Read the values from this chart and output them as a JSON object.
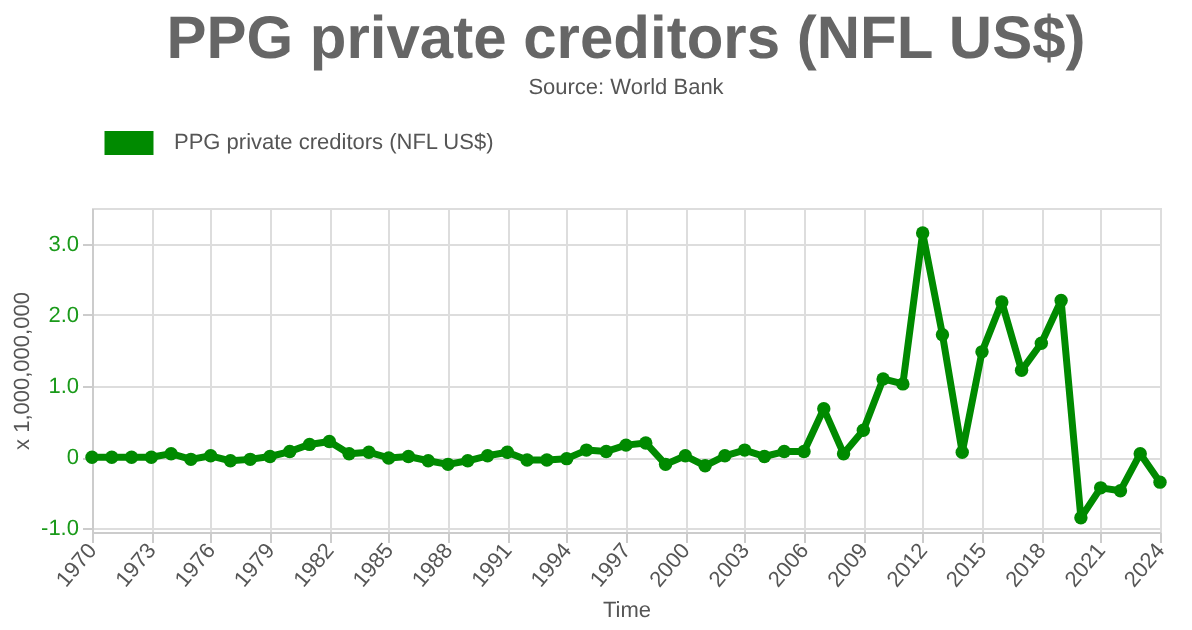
{
  "chart_data": {
    "type": "line",
    "title": "PPG private creditors (NFL US$)",
    "subtitle": "Source: World Bank",
    "xlabel": "Time",
    "ylabel": "x 1,000,000,000",
    "x": [
      1970,
      1971,
      1972,
      1973,
      1974,
      1975,
      1976,
      1977,
      1978,
      1979,
      1980,
      1981,
      1982,
      1983,
      1984,
      1985,
      1986,
      1987,
      1988,
      1989,
      1990,
      1991,
      1992,
      1993,
      1994,
      1995,
      1996,
      1997,
      1998,
      1999,
      2000,
      2001,
      2002,
      2003,
      2004,
      2005,
      2006,
      2007,
      2008,
      2009,
      2010,
      2011,
      2012,
      2013,
      2014,
      2015,
      2016,
      2017,
      2018,
      2019,
      2020,
      2021,
      2022,
      2023,
      2024
    ],
    "series": [
      {
        "name": "PPG private creditors (NFL US$)",
        "color": "#008a00",
        "values": [
          0,
          0,
          0,
          0,
          0.05,
          -0.03,
          0.02,
          -0.05,
          -0.03,
          0.01,
          0.08,
          0.18,
          0.22,
          0.05,
          0.07,
          -0.01,
          0.01,
          -0.05,
          -0.1,
          -0.05,
          0.02,
          0.07,
          -0.04,
          -0.04,
          -0.02,
          0.1,
          0.08,
          0.17,
          0.2,
          -0.1,
          0.02,
          -0.12,
          0.02,
          0.1,
          0.01,
          0.08,
          0.08,
          0.68,
          0.05,
          0.38,
          1.1,
          1.03,
          3.15,
          1.72,
          0.07,
          1.48,
          2.18,
          1.22,
          1.6,
          2.2,
          -0.85,
          -0.43,
          -0.47,
          0.05,
          -0.35
        ]
      }
    ],
    "xlim": [
      1970,
      2024
    ],
    "xticks": [
      1970,
      1973,
      1976,
      1979,
      1982,
      1985,
      1988,
      1991,
      1994,
      1997,
      2000,
      2003,
      2006,
      2009,
      2012,
      2015,
      2018,
      2021,
      2024
    ],
    "ylim": [
      -1.05,
      3.5
    ],
    "yticks": [
      {
        "value": 3,
        "label": "3.0"
      },
      {
        "value": 2,
        "label": "2.0"
      },
      {
        "value": 1,
        "label": "1.0"
      },
      0,
      {
        "value": -1,
        "label": "-1.0"
      }
    ],
    "grid": true,
    "legend": "top left",
    "marker": "circle",
    "line_style": "solid"
  }
}
